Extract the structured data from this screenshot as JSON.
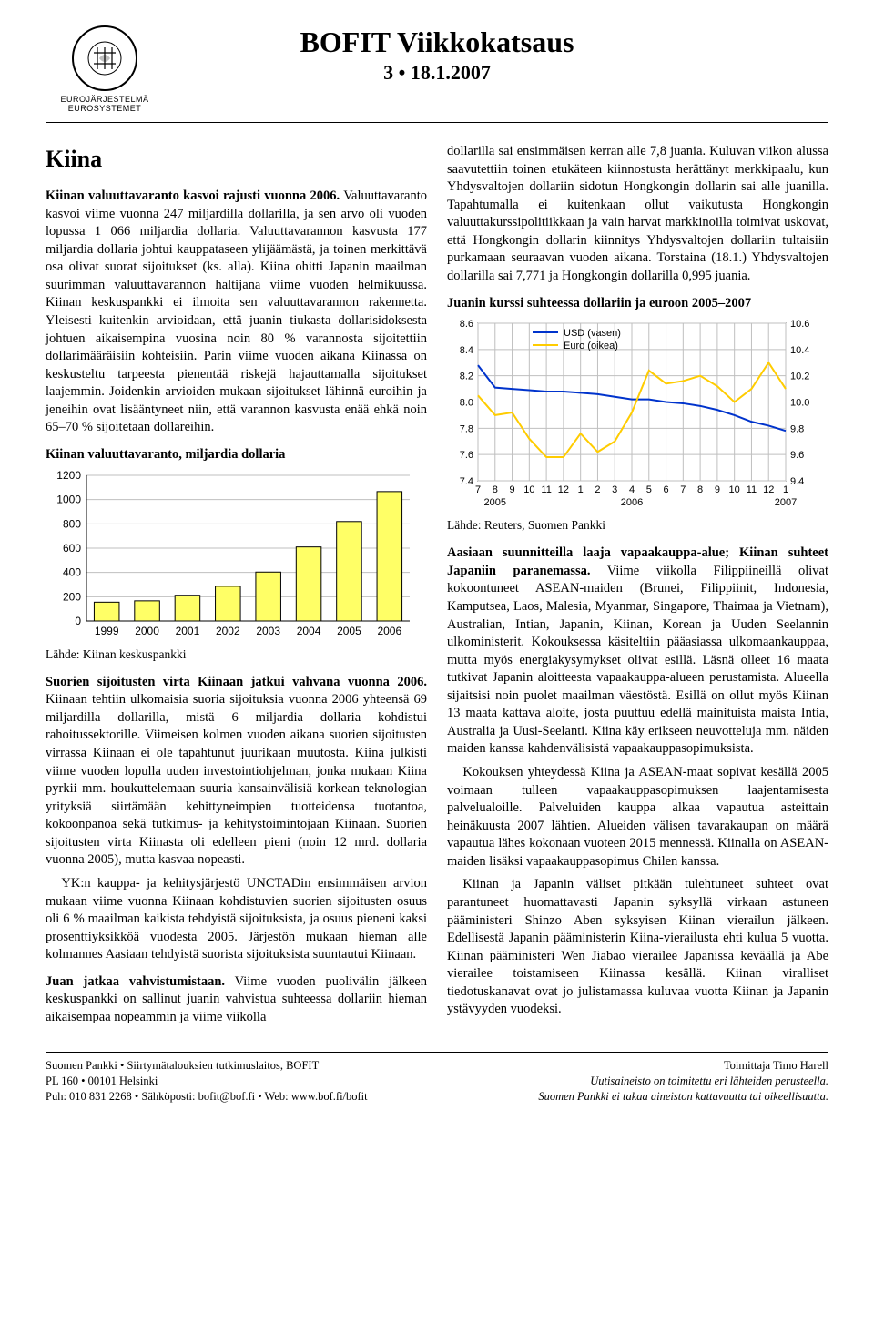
{
  "header": {
    "logo_sub1": "EUROJÄRJESTELMÄ",
    "logo_sub2": "EUROSYSTEMET",
    "title": "BOFIT Viikkokatsaus",
    "issue": "3 • 18.1.2007"
  },
  "left": {
    "heading": "Kiina",
    "p1_lead": "Kiinan valuuttavaranto kasvoi rajusti vuonna 2006.",
    "p1_body": " Valuuttavaranto kasvoi viime vuonna 247 miljardilla dollarilla, ja sen arvo oli vuoden lopussa 1 066 miljardia dollaria. Valuuttavarannon kasvusta 177 miljardia dollaria johtui kauppataseen ylijäämästä, ja toinen merkittävä osa olivat suorat sijoitukset (ks. alla). Kiina ohitti Japanin maailman suurimman valuuttavarannon haltijana viime vuoden helmikuussa. Kiinan keskuspankki ei ilmoita sen valuuttavarannon rakennetta. Yleisesti kuitenkin arvioidaan, että juanin tiukasta dollarisidoksesta johtuen aikaisempina vuosina noin 80 % varannosta sijoitettiin dollarimääräisiin kohteisiin. Parin viime vuoden aikana Kiinassa on keskusteltu tarpeesta pienentää riskejä hajauttamalla sijoitukset laajemmin. Joidenkin arvioiden mukaan sijoitukset lähinnä euroihin ja jeneihin ovat lisääntyneet niin, että varannon kasvusta enää ehkä noin 65–70 % sijoitetaan dollareihin.",
    "chart1": {
      "title": "Kiinan valuuttavaranto, miljardia dollaria",
      "type": "bar",
      "categories": [
        "1999",
        "2000",
        "2001",
        "2002",
        "2003",
        "2004",
        "2005",
        "2006"
      ],
      "values": [
        155,
        166,
        212,
        286,
        403,
        610,
        819,
        1066
      ],
      "ylim": [
        0,
        1200
      ],
      "ytick_step": 200,
      "bar_color": "#ffff66",
      "bar_border": "#000000",
      "grid_color": "#bfbfbf",
      "axis_color": "#000000",
      "bg": "#ffffff",
      "font_family": "Arial, sans-serif",
      "label_fontsize": 12
    },
    "source1": "Lähde: Kiinan keskuspankki",
    "p2_lead": "Suorien sijoitusten virta Kiinaan jatkui vahvana vuonna 2006.",
    "p2_body": " Kiinaan tehtiin ulkomaisia suoria sijoituksia vuonna 2006 yhteensä 69 miljardilla dollarilla, mistä 6 miljardia dollaria kohdistui rahoitussektorille. Viimeisen kolmen vuoden aikana suorien sijoitusten virrassa Kiinaan ei ole tapahtunut juurikaan muutosta. Kiina julkisti viime vuoden lopulla uuden investointiohjelman, jonka mukaan Kiina pyrkii mm. houkuttelemaan suuria kansainvälisiä korkean teknologian yrityksiä siirtämään kehittyneimpien tuotteidensa tuotantoa, kokoonpanoa sekä tutkimus- ja kehitystoimintojaan Kiinaan. Suorien sijoitusten virta Kiinasta oli edelleen pieni (noin 12 mrd. dollaria vuonna 2005), mutta kasvaa nopeasti.",
    "p2_body2": "YK:n kauppa- ja kehitysjärjestö UNCTADin ensimmäisen arvion mukaan viime vuonna Kiinaan kohdistuvien suorien sijoitusten osuus oli 6 % maailman kaikista tehdyistä sijoituksista, ja osuus pieneni kaksi prosenttiyksikköä vuodesta 2005. Järjestön mukaan hieman alle kolmannes Aasiaan tehdyistä suorista sijoituksista suuntautui Kiinaan.",
    "p3_lead": "Juan jatkaa vahvistumistaan.",
    "p3_body": " Viime vuoden puolivälin jälkeen keskuspankki on sallinut juanin vahvistua suhteessa dollariin hieman aikaisempaa nopeammin ja viime viikolla"
  },
  "right": {
    "p1": "dollarilla sai ensimmäisen kerran alle 7,8 juania. Kuluvan viikon alussa saavutettiin toinen etukäteen kiinnostusta herättänyt merkkipaalu, kun Yhdysvaltojen dollariin sidotun Hongkongin dollarin sai alle juanilla. Tapahtumalla ei kuitenkaan ollut vaikutusta Hongkongin valuuttakurssipolitiikkaan ja vain harvat markkinoilla toimivat uskovat, että Hongkongin dollarin kiinnitys Yhdysvaltojen dollariin tultaisiin purkamaan seuraavan vuoden aikana. Torstaina (18.1.) Yhdysvaltojen dollarilla sai 7,771 ja Hongkongin dollarilla 0,995 juania.",
    "chart2": {
      "title": "Juanin kurssi suhteessa dollariin ja euroon 2005–2007",
      "type": "line",
      "x_labels_row1": [
        "7",
        "8",
        "9",
        "10",
        "11",
        "12",
        "1",
        "2",
        "3",
        "4",
        "5",
        "6",
        "7",
        "8",
        "9",
        "10",
        "11",
        "12",
        "1"
      ],
      "x_years": [
        "2005",
        "2006",
        "2007"
      ],
      "x_year_positions": [
        1,
        9,
        18
      ],
      "left_axis": {
        "min": 7.4,
        "max": 8.6,
        "step": 0.2
      },
      "right_axis": {
        "min": 9.4,
        "max": 10.6,
        "step": 0.2
      },
      "series": [
        {
          "name": "USD (vasen)",
          "color": "#0033cc",
          "width": 2,
          "y": [
            8.28,
            8.11,
            8.1,
            8.09,
            8.08,
            8.08,
            8.07,
            8.06,
            8.04,
            8.02,
            8.02,
            8.0,
            7.99,
            7.97,
            7.94,
            7.9,
            7.85,
            7.82,
            7.78
          ]
        },
        {
          "name": "Euro (oikea)",
          "color": "#ffcc00",
          "width": 2,
          "y": [
            10.05,
            9.9,
            9.92,
            9.72,
            9.58,
            9.58,
            9.76,
            9.62,
            9.7,
            9.92,
            10.24,
            10.14,
            10.16,
            10.2,
            10.12,
            10.0,
            10.1,
            10.3,
            10.1
          ]
        }
      ],
      "legend_pos": "top-left",
      "grid_color": "#bfbfbf",
      "axis_color": "#000000",
      "bg": "#ffffff",
      "border_color": "#000000",
      "font_family": "Arial, sans-serif",
      "label_fontsize": 11
    },
    "source2": "Lähde: Reuters, Suomen Pankki",
    "p2_lead": "Aasiaan suunnitteilla laaja vapaakauppa-alue; Kiinan suhteet Japaniin paranemassa.",
    "p2_body": " Viime viikolla Filippiineillä olivat kokoontuneet ASEAN-maiden (Brunei, Filippiinit, Indonesia, Kamputsea, Laos, Malesia, Myanmar, Singapore, Thaimaa ja Vietnam), Australian, Intian, Japanin, Kiinan, Korean ja Uuden Seelannin ulkoministerit. Kokouksessa käsiteltiin pääasiassa ulkomaankauppaa, mutta myös energiakysymykset olivat esillä. Läsnä olleet 16 maata tutkivat Japanin aloitteesta vapaakauppa-alueen perustamista. Alueella sijaitsisi noin puolet maailman väestöstä. Esillä on ollut myös Kiinan 13 maata kattava aloite, josta puuttuu edellä mainituista maista Intia, Australia ja Uusi-Seelanti. Kiina käy erikseen neuvotteluja mm. näiden maiden kanssa kahdenvälisistä vapaakauppasopimuksista.",
    "p2_body2": "Kokouksen yhteydessä Kiina ja ASEAN-maat sopivat kesällä 2005 voimaan tulleen vapaakauppasopimuksen laajentamisesta palvelualoille. Palveluiden kauppa alkaa vapautua asteittain heinäkuusta 2007 lähtien. Alueiden välisen tavarakaupan on määrä vapautua lähes kokonaan vuoteen 2015 mennessä. Kiinalla on ASEAN-maiden lisäksi vapaakauppasopimus Chilen kanssa.",
    "p2_body3": "Kiinan ja Japanin väliset pitkään tulehtuneet suhteet ovat parantuneet huomattavasti Japanin syksyllä virkaan astuneen pääministeri Shinzo Aben syksyisen Kiinan vierailun jälkeen. Edellisestä Japanin pääministerin Kiina-vierailusta ehti kulua 5 vuotta. Kiinan pääministeri Wen Jiabao vierailee Japanissa keväällä ja Abe vierailee toistamiseen Kiinassa kesällä. Kiinan viralliset tiedotuskanavat ovat jo julistamassa kuluvaa vuotta Kiinan ja Japanin ystävyyden vuodeksi."
  },
  "footer": {
    "l1": "Suomen Pankki • Siirtymätalouksien tutkimuslaitos, BOFIT",
    "l2": "PL 160 • 00101 Helsinki",
    "l3": "Puh: 010 831 2268 • Sähköposti: bofit@bof.fi • Web: www.bof.fi/bofit",
    "r1": "Toimittaja Timo Harell",
    "r2": "Uutisaineisto on toimitettu eri lähteiden perusteella.",
    "r3": "Suomen Pankki ei takaa aineiston kattavuutta tai oikeellisuutta."
  }
}
